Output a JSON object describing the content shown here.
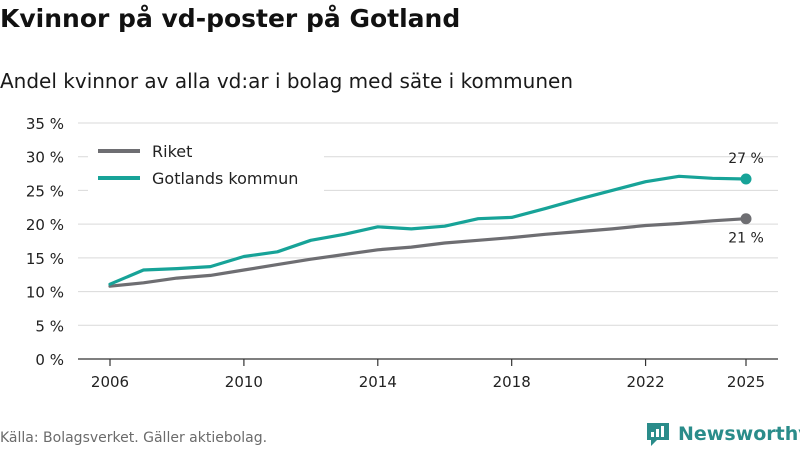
{
  "title": "Kvinnor på vd-poster på Gotland",
  "subtitle": "Andel kvinnor av alla vd:ar i bolag med säte i kommunen",
  "source": "Källa: Bolagsverket. Gäller aktiebolag.",
  "brand": {
    "name": "Newsworthy",
    "icon": "newsworthy-logo-icon",
    "color": "#2a8c8a"
  },
  "chart_data": {
    "type": "line",
    "x": [
      2006,
      2007,
      2008,
      2009,
      2010,
      2011,
      2012,
      2013,
      2014,
      2015,
      2016,
      2017,
      2018,
      2019,
      2020,
      2021,
      2022,
      2023,
      2024,
      2025
    ],
    "series": [
      {
        "name": "Riket",
        "color": "#6e6e72",
        "values": [
          10.8,
          11.3,
          12.0,
          12.4,
          13.2,
          14.0,
          14.8,
          15.5,
          16.2,
          16.6,
          17.2,
          17.6,
          18.0,
          18.5,
          18.9,
          19.3,
          19.8,
          20.1,
          20.5,
          20.8
        ],
        "end_label": "21 %"
      },
      {
        "name": "Gotlands kommun",
        "color": "#17a398",
        "values": [
          11.1,
          13.2,
          13.4,
          13.7,
          15.2,
          15.9,
          17.6,
          18.5,
          19.6,
          19.3,
          19.7,
          20.8,
          21.0,
          22.3,
          23.7,
          25.0,
          26.3,
          27.1,
          26.8,
          26.7
        ],
        "end_label": "27 %"
      }
    ],
    "y_ticks": [
      "0 %",
      "5 %",
      "10 %",
      "15 %",
      "20 %",
      "25 %",
      "30 %",
      "35 %"
    ],
    "y_tick_values": [
      0,
      5,
      10,
      15,
      20,
      25,
      30,
      35
    ],
    "x_ticks": [
      "2006",
      "2010",
      "2014",
      "2018",
      "2022",
      "2025"
    ],
    "x_tick_values": [
      2006,
      2010,
      2014,
      2018,
      2022,
      2025
    ],
    "ylim": [
      0,
      35
    ],
    "xlim": [
      2006,
      2025
    ],
    "ylabel": "",
    "xlabel": "",
    "grid": true,
    "legend_position": "top-left"
  }
}
